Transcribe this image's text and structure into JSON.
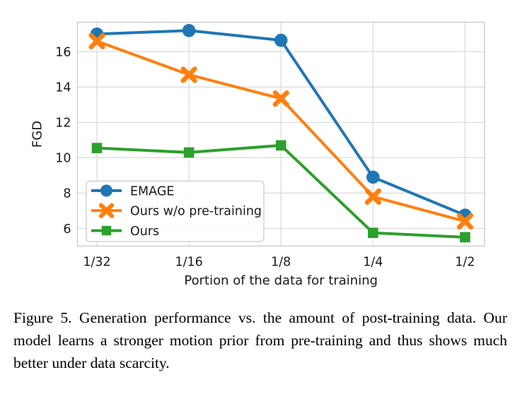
{
  "figure": {
    "caption": "Figure 5. Generation performance vs. the amount of post-training data. Our model learns a stronger motion prior from pre-training and thus shows much better under data scarcity."
  },
  "chart_data": {
    "type": "line",
    "title": "",
    "xlabel": "Portion of the data for training",
    "ylabel": "FGD",
    "categories": [
      "1/32",
      "1/16",
      "1/8",
      "1/4",
      "1/2"
    ],
    "y_ticks": [
      6,
      8,
      10,
      12,
      14,
      16
    ],
    "ylim": [
      5.0,
      17.67
    ],
    "grid": true,
    "legend_position": "lower-left",
    "colors": {
      "grid": "#dcdcdc",
      "spine": "#c9c9c9",
      "text": "#1a1a1a",
      "legend_border": "#cccccc"
    },
    "series": [
      {
        "name": "EMAGE",
        "marker": "circle",
        "color": "#1f77b4",
        "values": [
          17.0,
          17.2,
          16.65,
          8.9,
          6.75
        ]
      },
      {
        "name": "Ours w/o pre-training",
        "marker": "X",
        "color": "#ff7f0e",
        "values": [
          16.6,
          14.7,
          13.35,
          7.8,
          6.4
        ]
      },
      {
        "name": "Ours",
        "marker": "square",
        "color": "#2ca02c",
        "values": [
          10.55,
          10.3,
          10.7,
          5.75,
          5.5
        ]
      }
    ]
  }
}
